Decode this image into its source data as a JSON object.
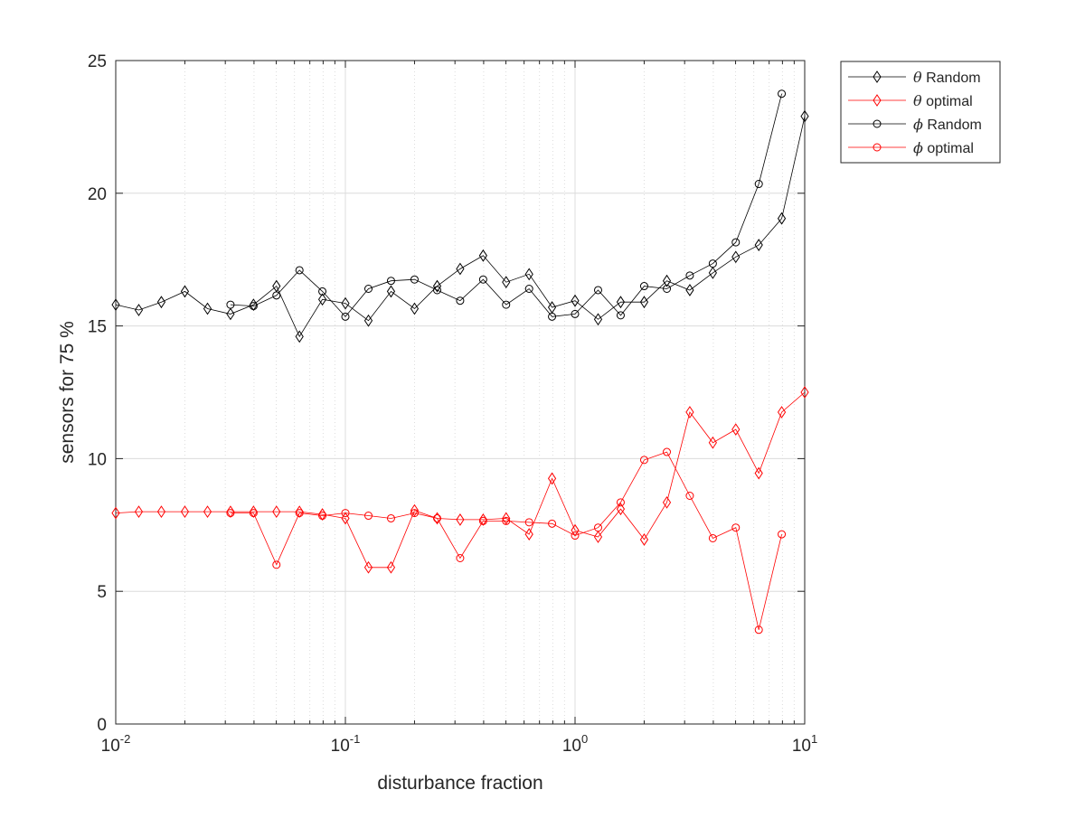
{
  "chart_data": {
    "type": "line",
    "xlabel": "disturbance fraction",
    "ylabel": "sensors for 75 %",
    "xscale": "log",
    "xlim": [
      0.01,
      10
    ],
    "ylim": [
      0,
      25
    ],
    "grid": "on",
    "legend_position": "outside top-right",
    "x_ticks": [
      {
        "value": 0.01,
        "base": "10",
        "exp": "-2"
      },
      {
        "value": 0.1,
        "base": "10",
        "exp": "-1"
      },
      {
        "value": 1,
        "base": "10",
        "exp": "0"
      },
      {
        "value": 10,
        "base": "10",
        "exp": "1"
      }
    ],
    "y_ticks": [
      {
        "value": 0,
        "label": "0"
      },
      {
        "value": 5,
        "label": "5"
      },
      {
        "value": 10,
        "label": "10"
      },
      {
        "value": 15,
        "label": "15"
      },
      {
        "value": 20,
        "label": "20"
      },
      {
        "value": 25,
        "label": "25"
      }
    ],
    "series": [
      {
        "symbol": "θ",
        "name": "Random",
        "color": "#000000",
        "marker": "diamond",
        "x": [
          0.01,
          0.0126,
          0.0158,
          0.02,
          0.0251,
          0.0316,
          0.0398,
          0.0501,
          0.0631,
          0.0794,
          0.1,
          0.126,
          0.158,
          0.2,
          0.251,
          0.316,
          0.398,
          0.501,
          0.631,
          0.794,
          1,
          1.26,
          1.58,
          2,
          2.51,
          3.16,
          3.98,
          5.01,
          6.31,
          7.94,
          10
        ],
        "y": [
          15.8,
          15.6,
          15.9,
          16.3,
          15.65,
          15.45,
          15.8,
          16.5,
          14.6,
          16.0,
          15.85,
          15.2,
          16.3,
          15.65,
          16.5,
          17.15,
          17.65,
          16.65,
          16.95,
          15.7,
          15.95,
          15.25,
          15.9,
          15.9,
          16.7,
          16.35,
          17.0,
          17.6,
          18.05,
          19.05,
          22.9
        ]
      },
      {
        "symbol": "θ",
        "name": "optimal",
        "color": "#ff0000",
        "marker": "diamond",
        "x": [
          0.01,
          0.0126,
          0.0158,
          0.02,
          0.0251,
          0.0316,
          0.0398,
          0.0501,
          0.0631,
          0.0794,
          0.1,
          0.126,
          0.158,
          0.2,
          0.251,
          0.316,
          0.398,
          0.501,
          0.631,
          0.794,
          1,
          1.26,
          1.58,
          2,
          2.51,
          3.16,
          3.98,
          5.01,
          6.31,
          7.94,
          10
        ],
        "y": [
          7.95,
          8.0,
          8.0,
          8.0,
          8.0,
          8.0,
          8.0,
          8.0,
          8.0,
          7.9,
          7.75,
          5.9,
          5.9,
          8.05,
          7.75,
          7.7,
          7.7,
          7.75,
          7.15,
          9.25,
          7.3,
          7.05,
          8.1,
          6.95,
          8.35,
          11.75,
          10.6,
          11.1,
          9.45,
          11.75,
          12.5
        ]
      },
      {
        "symbol": "ϕ",
        "name": "Random",
        "color": "#000000",
        "marker": "circle",
        "x": [
          0.0316,
          0.0398,
          0.0501,
          0.0631,
          0.0794,
          0.1,
          0.126,
          0.158,
          0.2,
          0.251,
          0.316,
          0.398,
          0.501,
          0.631,
          0.794,
          1,
          1.26,
          1.58,
          2,
          2.51,
          3.16,
          3.98,
          5.01,
          6.31,
          7.94
        ],
        "y": [
          15.8,
          15.75,
          16.15,
          17.1,
          16.3,
          15.35,
          16.4,
          16.7,
          16.75,
          16.35,
          15.95,
          16.75,
          15.8,
          16.4,
          15.35,
          15.45,
          16.35,
          15.4,
          16.5,
          16.4,
          16.9,
          17.35,
          18.15,
          20.35,
          23.75
        ]
      },
      {
        "symbol": "ϕ",
        "name": "optimal",
        "color": "#ff0000",
        "marker": "circle",
        "x": [
          0.0316,
          0.0398,
          0.0501,
          0.0631,
          0.0794,
          0.1,
          0.126,
          0.158,
          0.2,
          0.251,
          0.316,
          0.398,
          0.501,
          0.631,
          0.794,
          1,
          1.26,
          1.58,
          2,
          2.51,
          3.16,
          3.98,
          5.01,
          6.31,
          7.94
        ],
        "y": [
          7.95,
          7.95,
          6.0,
          7.95,
          7.85,
          7.95,
          7.85,
          7.75,
          7.95,
          7.75,
          6.25,
          7.65,
          7.65,
          7.6,
          7.55,
          7.1,
          7.4,
          8.35,
          9.95,
          10.25,
          8.6,
          7.0,
          7.4,
          3.55,
          7.15
        ]
      }
    ]
  }
}
